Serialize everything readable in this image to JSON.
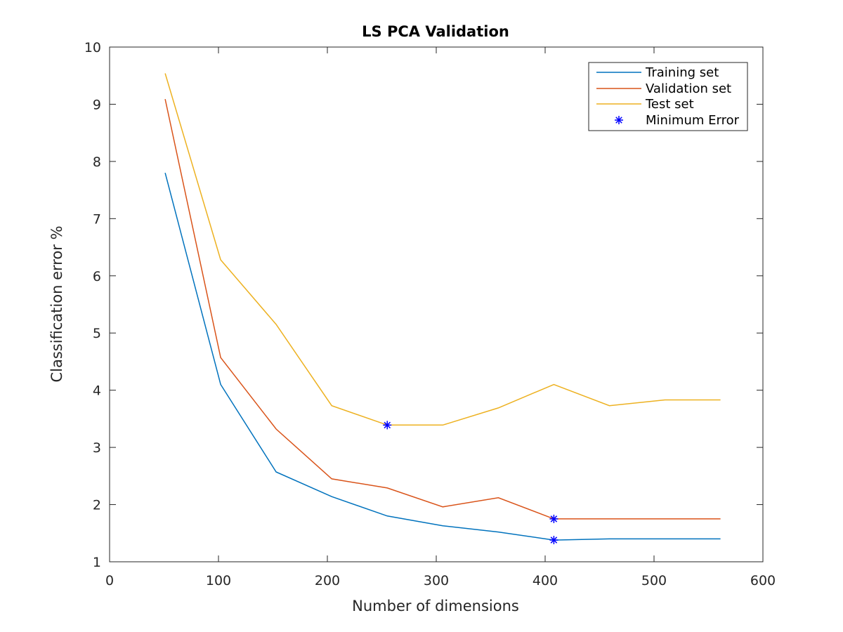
{
  "chart_data": {
    "type": "line",
    "title": "LS PCA Validation",
    "xlabel": "Number of dimensions",
    "ylabel": "Classification error %",
    "xlim": [
      0,
      600
    ],
    "ylim": [
      1,
      10
    ],
    "xticks": [
      0,
      100,
      200,
      300,
      400,
      500,
      600
    ],
    "yticks": [
      1,
      2,
      3,
      4,
      5,
      6,
      7,
      8,
      9,
      10
    ],
    "grid": false,
    "legend_position": "top-right",
    "x": [
      51,
      102,
      153,
      204,
      255,
      306,
      357,
      408,
      459,
      510,
      561
    ],
    "series": [
      {
        "name": "Training set",
        "color": "#0072BD",
        "values": [
          7.8,
          4.1,
          2.57,
          2.14,
          1.8,
          1.63,
          1.52,
          1.38,
          1.4,
          1.4,
          1.4
        ]
      },
      {
        "name": "Validation set",
        "color": "#D95319",
        "values": [
          9.09,
          4.57,
          3.32,
          2.45,
          2.29,
          1.96,
          2.12,
          1.75,
          1.75,
          1.75,
          1.75
        ]
      },
      {
        "name": "Test set",
        "color": "#EDB120",
        "values": [
          9.54,
          6.28,
          5.15,
          3.73,
          3.39,
          3.39,
          3.69,
          4.1,
          3.73,
          3.83,
          3.83
        ]
      }
    ],
    "minimum_error": {
      "name": "Minimum Error",
      "color": "#0000FF",
      "marker": "asterisk",
      "points": [
        {
          "x": 255,
          "y": 3.39
        },
        {
          "x": 408,
          "y": 1.75
        },
        {
          "x": 408,
          "y": 1.38
        }
      ]
    }
  }
}
